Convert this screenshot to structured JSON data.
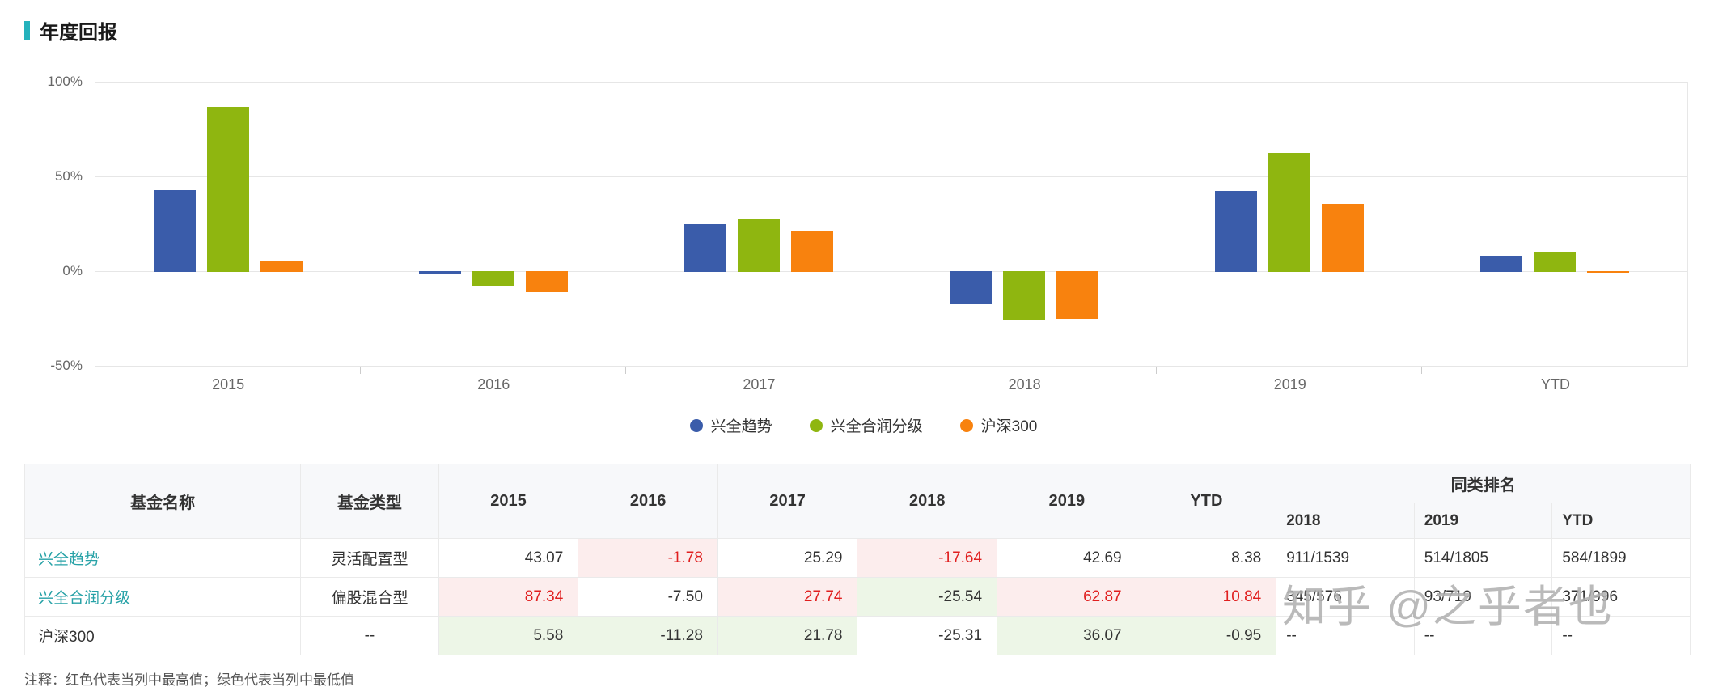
{
  "header": {
    "title": "年度回报"
  },
  "chart_data": {
    "type": "bar",
    "title": "年度回报",
    "categories": [
      "2015",
      "2016",
      "2017",
      "2018",
      "2019",
      "YTD"
    ],
    "series": [
      {
        "name": "兴全趋势",
        "color": "#3A5CAA",
        "values": [
          43.07,
          -1.78,
          25.29,
          -17.64,
          42.69,
          8.38
        ]
      },
      {
        "name": "兴全合润分级",
        "color": "#8FB610",
        "values": [
          87.34,
          -7.5,
          27.74,
          -25.54,
          62.87,
          10.84
        ]
      },
      {
        "name": "沪深300",
        "color": "#F8820E",
        "values": [
          5.58,
          -11.28,
          21.78,
          -25.31,
          36.07,
          -0.95
        ]
      }
    ],
    "unit": "%",
    "y_ticks": [
      "100%",
      "50%",
      "0%",
      "-50%"
    ],
    "ylim": [
      -50,
      100
    ],
    "grid": true,
    "legend_position": "bottom"
  },
  "table": {
    "headers": {
      "fund_name": "基金名称",
      "fund_type": "基金类型",
      "years": [
        "2015",
        "2016",
        "2017",
        "2018",
        "2019",
        "YTD"
      ],
      "rank_group": "同类排名",
      "rank_years": [
        "2018",
        "2019",
        "YTD"
      ]
    },
    "rows": [
      {
        "name": "兴全趋势",
        "name_is_link": true,
        "type": "灵活配置型",
        "values": [
          {
            "v": "43.07"
          },
          {
            "v": "-1.78",
            "h": "max"
          },
          {
            "v": "25.29"
          },
          {
            "v": "-17.64",
            "h": "max"
          },
          {
            "v": "42.69"
          },
          {
            "v": "8.38"
          }
        ],
        "ranks": [
          "911/1539",
          "514/1805",
          "584/1899"
        ]
      },
      {
        "name": "兴全合润分级",
        "name_is_link": true,
        "type": "偏股混合型",
        "values": [
          {
            "v": "87.34",
            "h": "max"
          },
          {
            "v": "-7.50"
          },
          {
            "v": "27.74",
            "h": "max"
          },
          {
            "v": "-25.54",
            "h": "min"
          },
          {
            "v": "62.87",
            "h": "max"
          },
          {
            "v": "10.84",
            "h": "max"
          }
        ],
        "ranks": [
          "345/576",
          "93/719",
          "371/996"
        ]
      },
      {
        "name": "沪深300",
        "name_is_link": false,
        "type": "--",
        "values": [
          {
            "v": "5.58",
            "h": "min"
          },
          {
            "v": "-11.28",
            "h": "min"
          },
          {
            "v": "21.78",
            "h": "min"
          },
          {
            "v": "-25.31"
          },
          {
            "v": "36.07",
            "h": "min"
          },
          {
            "v": "-0.95",
            "h": "min"
          }
        ],
        "ranks": [
          "--",
          "--",
          "--"
        ]
      }
    ]
  },
  "footnote": "注释：红色代表当列中最高值；绿色代表当列中最低值",
  "watermark": "知乎 @之乎者也",
  "colors": {
    "accent": "#25B2BC",
    "link": "#27A2A7",
    "max_text": "#E01F1F",
    "max_bg": "#FCEDED",
    "min_bg": "#EDF6E7"
  }
}
